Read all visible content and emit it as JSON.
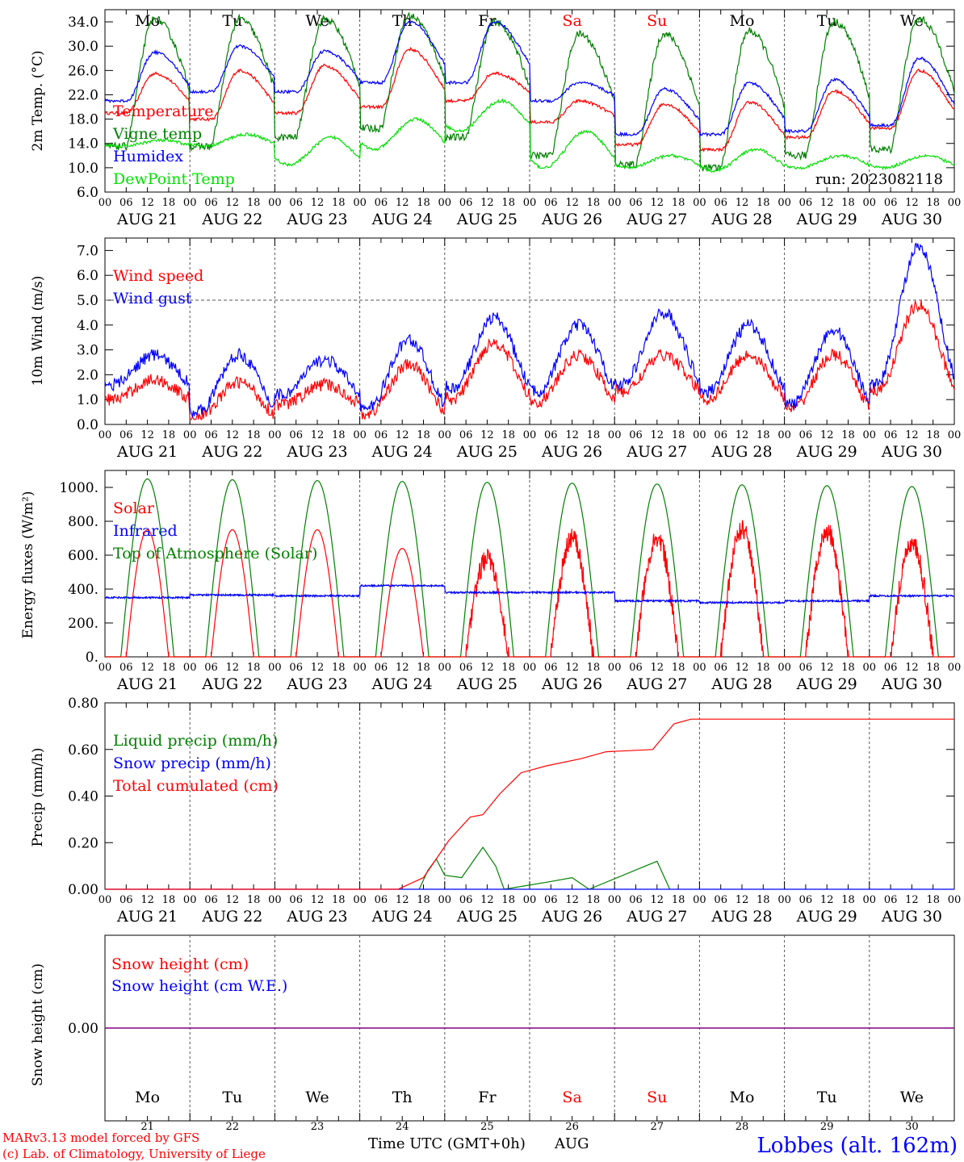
{
  "days": [
    {
      "label": "AUG 21",
      "abbr": "Mo",
      "num": "21",
      "weekend": false
    },
    {
      "label": "AUG 22",
      "abbr": "Tu",
      "num": "22",
      "weekend": false
    },
    {
      "label": "AUG 23",
      "abbr": "We",
      "num": "23",
      "weekend": false
    },
    {
      "label": "AUG 24",
      "abbr": "Th",
      "num": "24",
      "weekend": false
    },
    {
      "label": "AUG 25",
      "abbr": "Fr",
      "num": "25",
      "weekend": false
    },
    {
      "label": "AUG 26",
      "abbr": "Sa",
      "num": "26",
      "weekend": true
    },
    {
      "label": "AUG 27",
      "abbr": "Su",
      "num": "27",
      "weekend": true
    },
    {
      "label": "AUG 28",
      "abbr": "Mo",
      "num": "28",
      "weekend": false
    },
    {
      "label": "AUG 29",
      "abbr": "Tu",
      "num": "29",
      "weekend": false
    },
    {
      "label": "AUG 30",
      "abbr": "We",
      "num": "30",
      "weekend": false
    }
  ],
  "hour_ticks": [
    "00",
    "06",
    "12",
    "18"
  ],
  "colors": {
    "red": "#ff0000",
    "green": "#008000",
    "blue": "#0000ff",
    "lime": "#00e000",
    "purple": "#800080",
    "grid": "#555555"
  },
  "footer": {
    "credit_line1": "MARv3.13 model forced by GFS",
    "credit_line2": "(c) Lab. of Climatology, University of Liege",
    "axis_title": "Time UTC (GMT+0h)",
    "month": "AUG",
    "station": "Lobbes (alt. 162m)"
  },
  "chart_data": [
    {
      "type": "line",
      "ylabel": "2m Temp. (°C)",
      "ylim": [
        6,
        36
      ],
      "yticks": [
        "6.0",
        "10.0",
        "14.0",
        "18.0",
        "22.0",
        "26.0",
        "30.0",
        "34.0"
      ],
      "annotation": "run: 2023082118",
      "series": [
        {
          "name": "Temperature",
          "color": "red",
          "min": [
            19,
            18,
            19,
            20,
            21,
            17.5,
            13.8,
            13,
            15,
            16.5
          ],
          "max": [
            25.5,
            26,
            26.8,
            29.5,
            25.6,
            21,
            20.5,
            20.8,
            22.6,
            26
          ]
        },
        {
          "name": "Vigne temp",
          "color": "green",
          "min": [
            13.5,
            13.5,
            15,
            16.5,
            15,
            12,
            10.5,
            10,
            12,
            13
          ],
          "max": [
            34.5,
            34.5,
            34.5,
            35,
            34,
            32,
            32,
            32.5,
            34,
            34.5
          ]
        },
        {
          "name": "Humidex",
          "color": "blue",
          "min": [
            21,
            22.5,
            22.5,
            24,
            24,
            21,
            15.5,
            15.5,
            16,
            17
          ],
          "max": [
            29,
            30,
            29.2,
            34,
            34,
            24,
            23,
            24,
            24.5,
            28
          ]
        },
        {
          "name": "DewPoint Temp",
          "color": "lime",
          "min": [
            13.5,
            13.5,
            10.5,
            13,
            16,
            10,
            10,
            9.5,
            10,
            10
          ],
          "max": [
            14.5,
            15.5,
            15,
            18,
            21,
            16,
            12,
            13,
            12,
            12
          ]
        }
      ]
    },
    {
      "type": "line",
      "ylabel": "10m Wind (m/s)",
      "ylim": [
        0,
        7.5
      ],
      "yticks": [
        "0.0",
        "1.0",
        "2.0",
        "3.0",
        "4.0",
        "5.0",
        "6.0",
        "7.0"
      ],
      "reference_line": 5.0,
      "series": [
        {
          "name": "Wind speed",
          "color": "red",
          "min": [
            1.0,
            0.3,
            0.8,
            0.4,
            1.0,
            0.9,
            1.3,
            1.0,
            0.6,
            1.3
          ],
          "max": [
            1.8,
            1.7,
            1.6,
            2.4,
            3.3,
            2.8,
            2.8,
            2.8,
            2.8,
            4.8
          ]
        },
        {
          "name": "Wind gust",
          "color": "blue",
          "min": [
            1.6,
            0.5,
            1.2,
            0.6,
            1.4,
            1.3,
            1.6,
            1.3,
            0.8,
            1.6
          ],
          "max": [
            2.8,
            2.8,
            2.6,
            3.4,
            4.3,
            4.0,
            4.5,
            4.0,
            3.8,
            7.1
          ]
        }
      ]
    },
    {
      "type": "line",
      "ylabel": "Energy fluxes (W/m²)",
      "ylim": [
        0,
        1100
      ],
      "yticks": [
        "0.",
        "200.",
        "400.",
        "600.",
        "800.",
        "1000."
      ],
      "series": [
        {
          "name": "Solar",
          "color": "red",
          "daily_peak": [
            750,
            750,
            750,
            640,
            580,
            700,
            700,
            750,
            740,
            670
          ]
        },
        {
          "name": "Infrared",
          "color": "blue",
          "daily_level": [
            350,
            365,
            360,
            420,
            380,
            380,
            330,
            320,
            330,
            360
          ]
        },
        {
          "name": "Top of Atmosphere (Solar)",
          "color": "green",
          "daily_peak": [
            1050,
            1045,
            1040,
            1035,
            1030,
            1025,
            1020,
            1015,
            1010,
            1005
          ]
        }
      ]
    },
    {
      "type": "line",
      "ylabel": "Precip (mm/h)",
      "ylim": [
        0,
        0.8
      ],
      "yticks": [
        "0.00",
        "0.20",
        "0.40",
        "0.60",
        "0.80"
      ],
      "series": [
        {
          "name": "Liquid precip (mm/h)",
          "color": "green",
          "points": [
            [
              3.7,
              0
            ],
            [
              3.8,
              0.08
            ],
            [
              3.9,
              0.13
            ],
            [
              4.0,
              0.06
            ],
            [
              4.2,
              0.05
            ],
            [
              4.45,
              0.18
            ],
            [
              4.6,
              0.1
            ],
            [
              4.7,
              0
            ],
            [
              5.2,
              0.03
            ],
            [
              5.5,
              0.05
            ],
            [
              5.7,
              0
            ],
            [
              6.5,
              0.12
            ],
            [
              6.65,
              0
            ]
          ]
        },
        {
          "name": "Snow precip (mm/h)",
          "color": "blue",
          "points": [
            [
              0,
              0
            ],
            [
              10,
              0
            ]
          ]
        },
        {
          "name": "Total cumulated (cm)",
          "color": "red",
          "points": [
            [
              0,
              0
            ],
            [
              3.45,
              0
            ],
            [
              3.75,
              0.05
            ],
            [
              4.05,
              0.21
            ],
            [
              4.3,
              0.31
            ],
            [
              4.45,
              0.32
            ],
            [
              4.65,
              0.41
            ],
            [
              4.9,
              0.5
            ],
            [
              5.2,
              0.53
            ],
            [
              5.6,
              0.56
            ],
            [
              5.9,
              0.59
            ],
            [
              6.45,
              0.6
            ],
            [
              6.7,
              0.71
            ],
            [
              6.9,
              0.73
            ],
            [
              10,
              0.73
            ]
          ]
        }
      ]
    },
    {
      "type": "line",
      "ylabel": "Snow height (cm)",
      "yticks": [
        "0.00"
      ],
      "series": [
        {
          "name": "Snow height (cm)",
          "color": "red",
          "points": [
            [
              0,
              0
            ],
            [
              10,
              0
            ]
          ]
        },
        {
          "name": "Snow height (cm W.E.)",
          "color": "blue",
          "points": [
            [
              0,
              0
            ],
            [
              10,
              0
            ]
          ]
        }
      ]
    }
  ]
}
